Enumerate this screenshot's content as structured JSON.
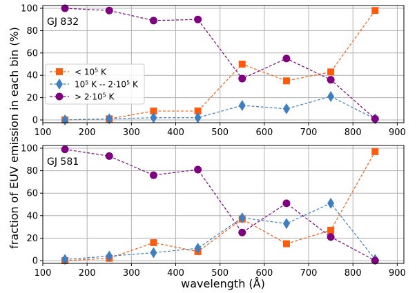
{
  "figure": {
    "xlabel": "wavelength (Å)",
    "ylabel": "fraction of EUV emission in each bin (%)"
  },
  "legend": [
    {
      "series_index": 0,
      "prefix": "< 10",
      "sup": "5",
      "suffix": " K"
    },
    {
      "series_index": 1,
      "prefix": "10",
      "sup": "5",
      "mid": " K -- 2·10",
      "sup2": "5",
      "suffix": " K"
    },
    {
      "series_index": 2,
      "prefix": "> 2·10",
      "sup": "5",
      "suffix": " K"
    }
  ],
  "colors": {
    "low": "#ff5b0f",
    "mid": "#3f7fbf",
    "high": "#7f007f",
    "grid": "#b0b0b0"
  },
  "chart_data": [
    {
      "type": "line",
      "label": "GJ 832",
      "x": [
        150,
        250,
        350,
        450,
        550,
        650,
        750,
        850
      ],
      "xlim": [
        100,
        915
      ],
      "ylim": [
        0,
        100
      ],
      "xticks": [
        100,
        200,
        300,
        400,
        500,
        600,
        700,
        800,
        900
      ],
      "yticks": [
        0,
        20,
        40,
        60,
        80,
        100
      ],
      "grid": true,
      "legend_position": "center-left",
      "series": [
        {
          "marker": "square",
          "color": "#ff5b0f",
          "values": [
            0,
            1,
            8,
            8,
            50,
            35,
            43,
            98
          ]
        },
        {
          "marker": "diamond",
          "color": "#3f7fbf",
          "values": [
            0,
            1,
            2,
            2,
            13,
            10,
            21,
            1
          ]
        },
        {
          "marker": "circle",
          "color": "#7f007f",
          "values": [
            100,
            98,
            89,
            90,
            37,
            55,
            36,
            1
          ]
        }
      ]
    },
    {
      "type": "line",
      "label": "GJ 581",
      "x": [
        150,
        250,
        350,
        450,
        550,
        650,
        750,
        850
      ],
      "xlim": [
        100,
        915
      ],
      "ylim": [
        0,
        100
      ],
      "xticks": [
        100,
        200,
        300,
        400,
        500,
        600,
        700,
        800,
        900
      ],
      "yticks": [
        0,
        20,
        40,
        60,
        80,
        100
      ],
      "grid": true,
      "series": [
        {
          "marker": "square",
          "color": "#ff5b0f",
          "values": [
            0,
            2,
            16,
            8,
            37,
            15,
            27,
            97
          ]
        },
        {
          "marker": "diamond",
          "color": "#3f7fbf",
          "values": [
            1,
            4,
            7,
            11,
            38,
            33,
            51,
            1
          ]
        },
        {
          "marker": "circle",
          "color": "#7f007f",
          "values": [
            99,
            93,
            76,
            81,
            25,
            51,
            21,
            0
          ]
        }
      ]
    }
  ]
}
